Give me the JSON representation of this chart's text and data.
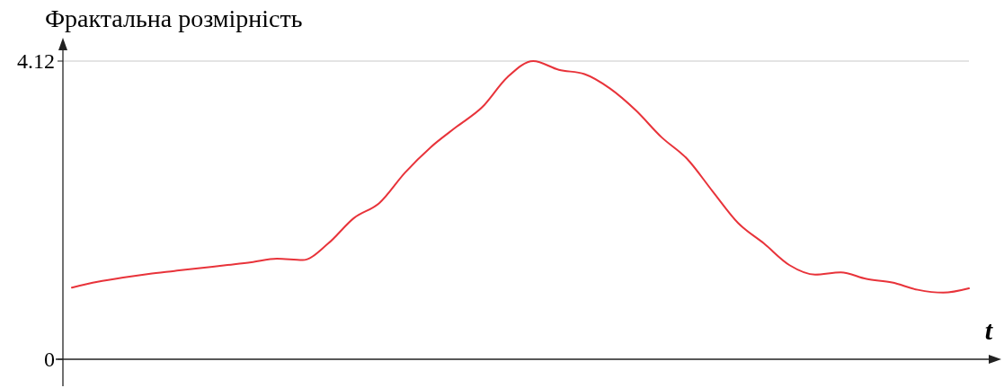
{
  "chart_data": {
    "type": "line",
    "ylabel": "Фрактальна розмірність",
    "xlabel": "t",
    "categories": [
      null,
      null,
      null,
      null,
      null,
      null,
      null,
      null,
      null,
      null,
      null,
      null,
      null,
      null,
      null,
      null,
      null,
      null,
      null,
      null,
      null,
      null,
      null,
      null,
      null,
      null,
      null,
      null,
      null,
      null,
      null,
      null,
      null,
      null,
      null,
      null
    ],
    "series": [
      {
        "color": "#e8333a",
        "values": [
          0.99,
          1.07,
          1.13,
          1.18,
          1.22,
          1.26,
          1.3,
          1.34,
          1.39,
          1.37,
          1.6,
          1.95,
          2.16,
          2.58,
          2.93,
          3.21,
          3.48,
          3.9,
          4.12,
          4.0,
          3.94,
          3.74,
          3.44,
          3.07,
          2.77,
          2.32,
          1.88,
          1.6,
          1.3,
          1.17,
          1.2,
          1.11,
          1.06,
          0.96,
          0.92,
          0.98
        ]
      }
    ],
    "ylim": [
      0,
      4.12
    ],
    "yticks": [
      0,
      4.12
    ],
    "ref_lines": [
      {
        "axis": "y",
        "value": 4.12,
        "color": "#c8c8c8"
      }
    ]
  }
}
